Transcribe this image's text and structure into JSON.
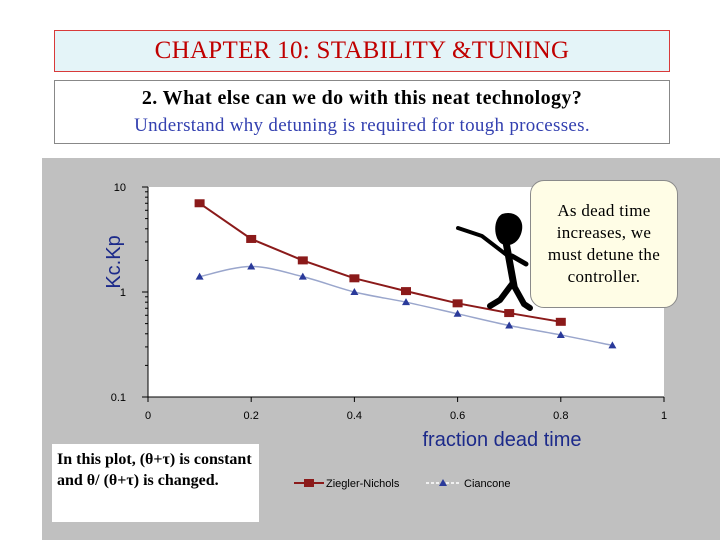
{
  "slide": {
    "title": "CHAPTER 10: STABILITY &TUNING",
    "question": "2.   What else can we do with this neat technology?",
    "subtitle": "Understand why detuning is required for tough processes.",
    "note": "In this plot, (θ+τ) is constant and θ/ (θ+τ) is changed.",
    "callout": "As dead time increases, we must detune the controller."
  },
  "colors": {
    "title_text": "#c00000",
    "title_bg": "#e4f4f8",
    "subtitle_text": "#3340b0",
    "plot_bg": "#ffffff",
    "chart_bg": "#c0c0c0",
    "ziegler": "#8b1a1a",
    "ciancone": "#2a3a9a",
    "axis_label": "#1c2a8a"
  },
  "chart_data": {
    "type": "line",
    "x_label": "fraction dead time",
    "y_label": "Kc.Kp",
    "y_scale": "log",
    "xlim": [
      0,
      1
    ],
    "ylim": [
      0.1,
      10
    ],
    "x_ticks": [
      "0",
      "0.2",
      "0.4",
      "0.6",
      "0.8",
      "1"
    ],
    "y_ticks": [
      "0.1",
      "1",
      "10"
    ],
    "legend_position": "bottom",
    "series": [
      {
        "name": "Ziegler-Nichols",
        "marker": "square",
        "x": [
          0.1,
          0.2,
          0.3,
          0.4,
          0.5,
          0.6,
          0.7,
          0.8
        ],
        "y": [
          7.0,
          3.2,
          2.0,
          1.35,
          1.02,
          0.78,
          0.63,
          0.52
        ]
      },
      {
        "name": "Ciancone",
        "marker": "triangle",
        "x": [
          0.1,
          0.2,
          0.3,
          0.4,
          0.5,
          0.6,
          0.7,
          0.8,
          0.9
        ],
        "y": [
          1.4,
          1.75,
          1.4,
          1.0,
          0.8,
          0.62,
          0.48,
          0.39,
          0.31
        ]
      }
    ]
  }
}
